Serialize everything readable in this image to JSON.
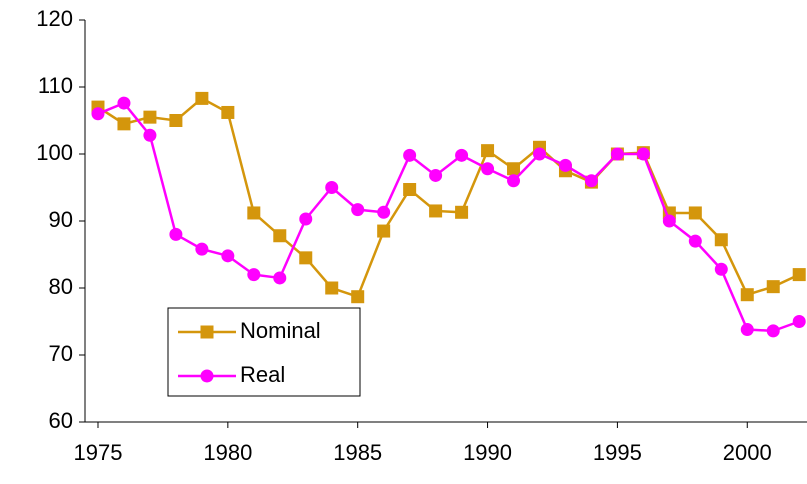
{
  "chart_data": {
    "type": "line",
    "x": [
      1975,
      1976,
      1977,
      1978,
      1979,
      1980,
      1981,
      1982,
      1983,
      1984,
      1985,
      1986,
      1987,
      1988,
      1989,
      1990,
      1991,
      1992,
      1993,
      1994,
      1995,
      1996,
      1997,
      1998,
      1999,
      2000,
      2001,
      2002
    ],
    "series": [
      {
        "name": "Nominal",
        "color": "#d4960c",
        "marker": "square",
        "values": [
          107,
          104.5,
          105.5,
          105,
          108.3,
          106.2,
          91.2,
          87.8,
          84.5,
          80,
          78.7,
          88.5,
          94.7,
          91.5,
          91.3,
          100.5,
          97.8,
          101,
          97.5,
          95.8,
          100,
          100.2,
          91.2,
          91.2,
          87.2,
          79,
          80.2,
          82
        ]
      },
      {
        "name": "Real",
        "color": "#ff00ff",
        "marker": "circle",
        "values": [
          106,
          107.6,
          102.8,
          88,
          85.8,
          84.8,
          82,
          81.5,
          90.3,
          95,
          91.7,
          91.3,
          99.8,
          96.8,
          99.8,
          97.8,
          96,
          100,
          98.3,
          96,
          100,
          100,
          90,
          87,
          82.8,
          73.8,
          73.6,
          75
        ]
      }
    ],
    "xlim": [
      1974.5,
      2002.3
    ],
    "xticks": [
      1975,
      1980,
      1985,
      1990,
      1995,
      2000
    ],
    "ylim": [
      60,
      120
    ],
    "yticks": [
      60,
      70,
      80,
      90,
      100,
      110,
      120
    ],
    "grid": false
  }
}
